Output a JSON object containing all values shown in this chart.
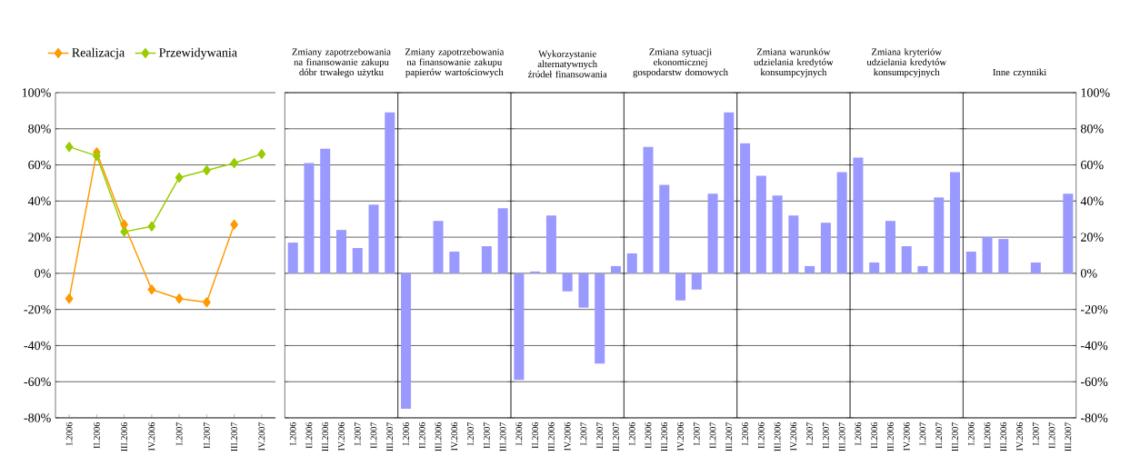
{
  "chart_data": [
    {
      "type": "line",
      "categories": [
        "I.2006",
        "II.2006",
        "III.2006",
        "IV.2006",
        "I.2007",
        "II.2007",
        "III.2007",
        "IV.2007"
      ],
      "series": [
        {
          "name": "Realizacja",
          "color": "#ff9900",
          "values": [
            -14,
            67,
            27,
            -9,
            -14,
            -16,
            27,
            null
          ]
        },
        {
          "name": "Przewidywania",
          "color": "#99cc00",
          "values": [
            70,
            65,
            23,
            26,
            53,
            57,
            61,
            66
          ]
        }
      ],
      "ylim": [
        -80,
        100
      ],
      "yticks": [
        {
          "value": -80,
          "label": "-80%"
        },
        {
          "value": -60,
          "label": "-60%"
        },
        {
          "value": -40,
          "label": "-40%"
        },
        {
          "value": -20,
          "label": "-20%"
        },
        {
          "value": 0,
          "label": "0%"
        },
        {
          "value": 20,
          "label": "20%"
        },
        {
          "value": 40,
          "label": "40%"
        },
        {
          "value": 60,
          "label": "60%"
        },
        {
          "value": 80,
          "label": "80%"
        },
        {
          "value": 100,
          "label": "100%"
        }
      ],
      "grid": "y",
      "legend": "top",
      "marker": "diamond"
    },
    {
      "type": "bar",
      "title": "Zmiany zapotrzebowania na finansowanie zakupu dóbr trwałego użytku",
      "categories": [
        "I.2006",
        "II.2006",
        "III.2006",
        "IV.2006",
        "I.2007",
        "II.2007",
        "III.2007"
      ],
      "values": [
        17,
        61,
        69,
        24,
        14,
        38,
        89
      ],
      "color": "#9999ff",
      "ylim": [
        -80,
        100
      ],
      "yticks": [
        -80,
        -60,
        -40,
        -20,
        0,
        20,
        40,
        60,
        80,
        100
      ],
      "grid": "y",
      "tick_labels": "x"
    },
    {
      "type": "bar",
      "title": "Zmiany zapotrzebowania na finansowanie zakupu papierów wartościowych",
      "categories": [
        "I.2006",
        "II.2006",
        "III.2006",
        "IV.2006",
        "I.2007",
        "II.2007",
        "III.2007"
      ],
      "values": [
        -75,
        null,
        29,
        12,
        null,
        15,
        36
      ],
      "color": "#9999ff",
      "ylim": [
        -80,
        100
      ],
      "yticks": [
        -80,
        -60,
        -40,
        -20,
        0,
        20,
        40,
        60,
        80,
        100
      ],
      "grid": "y",
      "tick_labels": "x"
    },
    {
      "type": "bar",
      "title": "Wykorzystanie alternatywnych źródeł finansowania",
      "categories": [
        "I.2006",
        "II.2006",
        "III.2006",
        "IV.2006",
        "I.2007",
        "II.2007",
        "III.2007"
      ],
      "values": [
        -59,
        1,
        32,
        -10,
        -19,
        -50,
        4
      ],
      "color": "#9999ff",
      "ylim": [
        -80,
        100
      ],
      "yticks": [
        -80,
        -60,
        -40,
        -20,
        0,
        20,
        40,
        60,
        80,
        100
      ],
      "grid": "y",
      "tick_labels": "x"
    },
    {
      "type": "bar",
      "title": "Zmiana sytuacji ekonomicznej gospodarstw domowych",
      "categories": [
        "I.2006",
        "II.2006",
        "III.2006",
        "IV.2006",
        "I.2007",
        "II.2007",
        "III.2007"
      ],
      "values": [
        11,
        70,
        49,
        -15,
        -9,
        44,
        89
      ],
      "color": "#9999ff",
      "ylim": [
        -80,
        100
      ],
      "yticks": [
        -80,
        -60,
        -40,
        -20,
        0,
        20,
        40,
        60,
        80,
        100
      ],
      "grid": "y",
      "tick_labels": "x"
    },
    {
      "type": "bar",
      "title": "Zmiana warunków udzielania kredytów konsumpcyjnych",
      "categories": [
        "I.2006",
        "II.2006",
        "III.2006",
        "IV.2006",
        "I.2007",
        "II.2007",
        "III.2007"
      ],
      "values": [
        72,
        54,
        43,
        32,
        4,
        28,
        56
      ],
      "color": "#9999ff",
      "ylim": [
        -80,
        100
      ],
      "yticks": [
        -80,
        -60,
        -40,
        -20,
        0,
        20,
        40,
        60,
        80,
        100
      ],
      "grid": "y",
      "tick_labels": "x"
    },
    {
      "type": "bar",
      "title": "Zmiana kryteriów udzielania kredytów konsumpcyjnych",
      "categories": [
        "I.2006",
        "II.2006",
        "III.2006",
        "IV.2006",
        "I.2007",
        "II.2007",
        "III.2007"
      ],
      "values": [
        64,
        6,
        29,
        15,
        4,
        42,
        56
      ],
      "color": "#9999ff",
      "ylim": [
        -80,
        100
      ],
      "yticks": [
        -80,
        -60,
        -40,
        -20,
        0,
        20,
        40,
        60,
        80,
        100
      ],
      "grid": "y",
      "tick_labels": "x"
    },
    {
      "type": "bar",
      "title": "Inne czynniki",
      "categories": [
        "I.2006",
        "II.2006",
        "III.2006",
        "IV.2006",
        "I.2007",
        "II.2007",
        "III.2007"
      ],
      "values": [
        12,
        20,
        19,
        null,
        6,
        null,
        44
      ],
      "color": "#9999ff",
      "ylim": [
        -80,
        100
      ],
      "yticks": [
        {
          "value": -80,
          "label": "-80%"
        },
        {
          "value": -60,
          "label": "-60%"
        },
        {
          "value": -40,
          "label": "-40%"
        },
        {
          "value": -20,
          "label": "-20%"
        },
        {
          "value": 0,
          "label": "0%"
        },
        {
          "value": 20,
          "label": "20%"
        },
        {
          "value": 40,
          "label": "40%"
        },
        {
          "value": 60,
          "label": "60%"
        },
        {
          "value": 80,
          "label": "80%"
        },
        {
          "value": 100,
          "label": "100%"
        }
      ],
      "grid": "y"
    }
  ]
}
